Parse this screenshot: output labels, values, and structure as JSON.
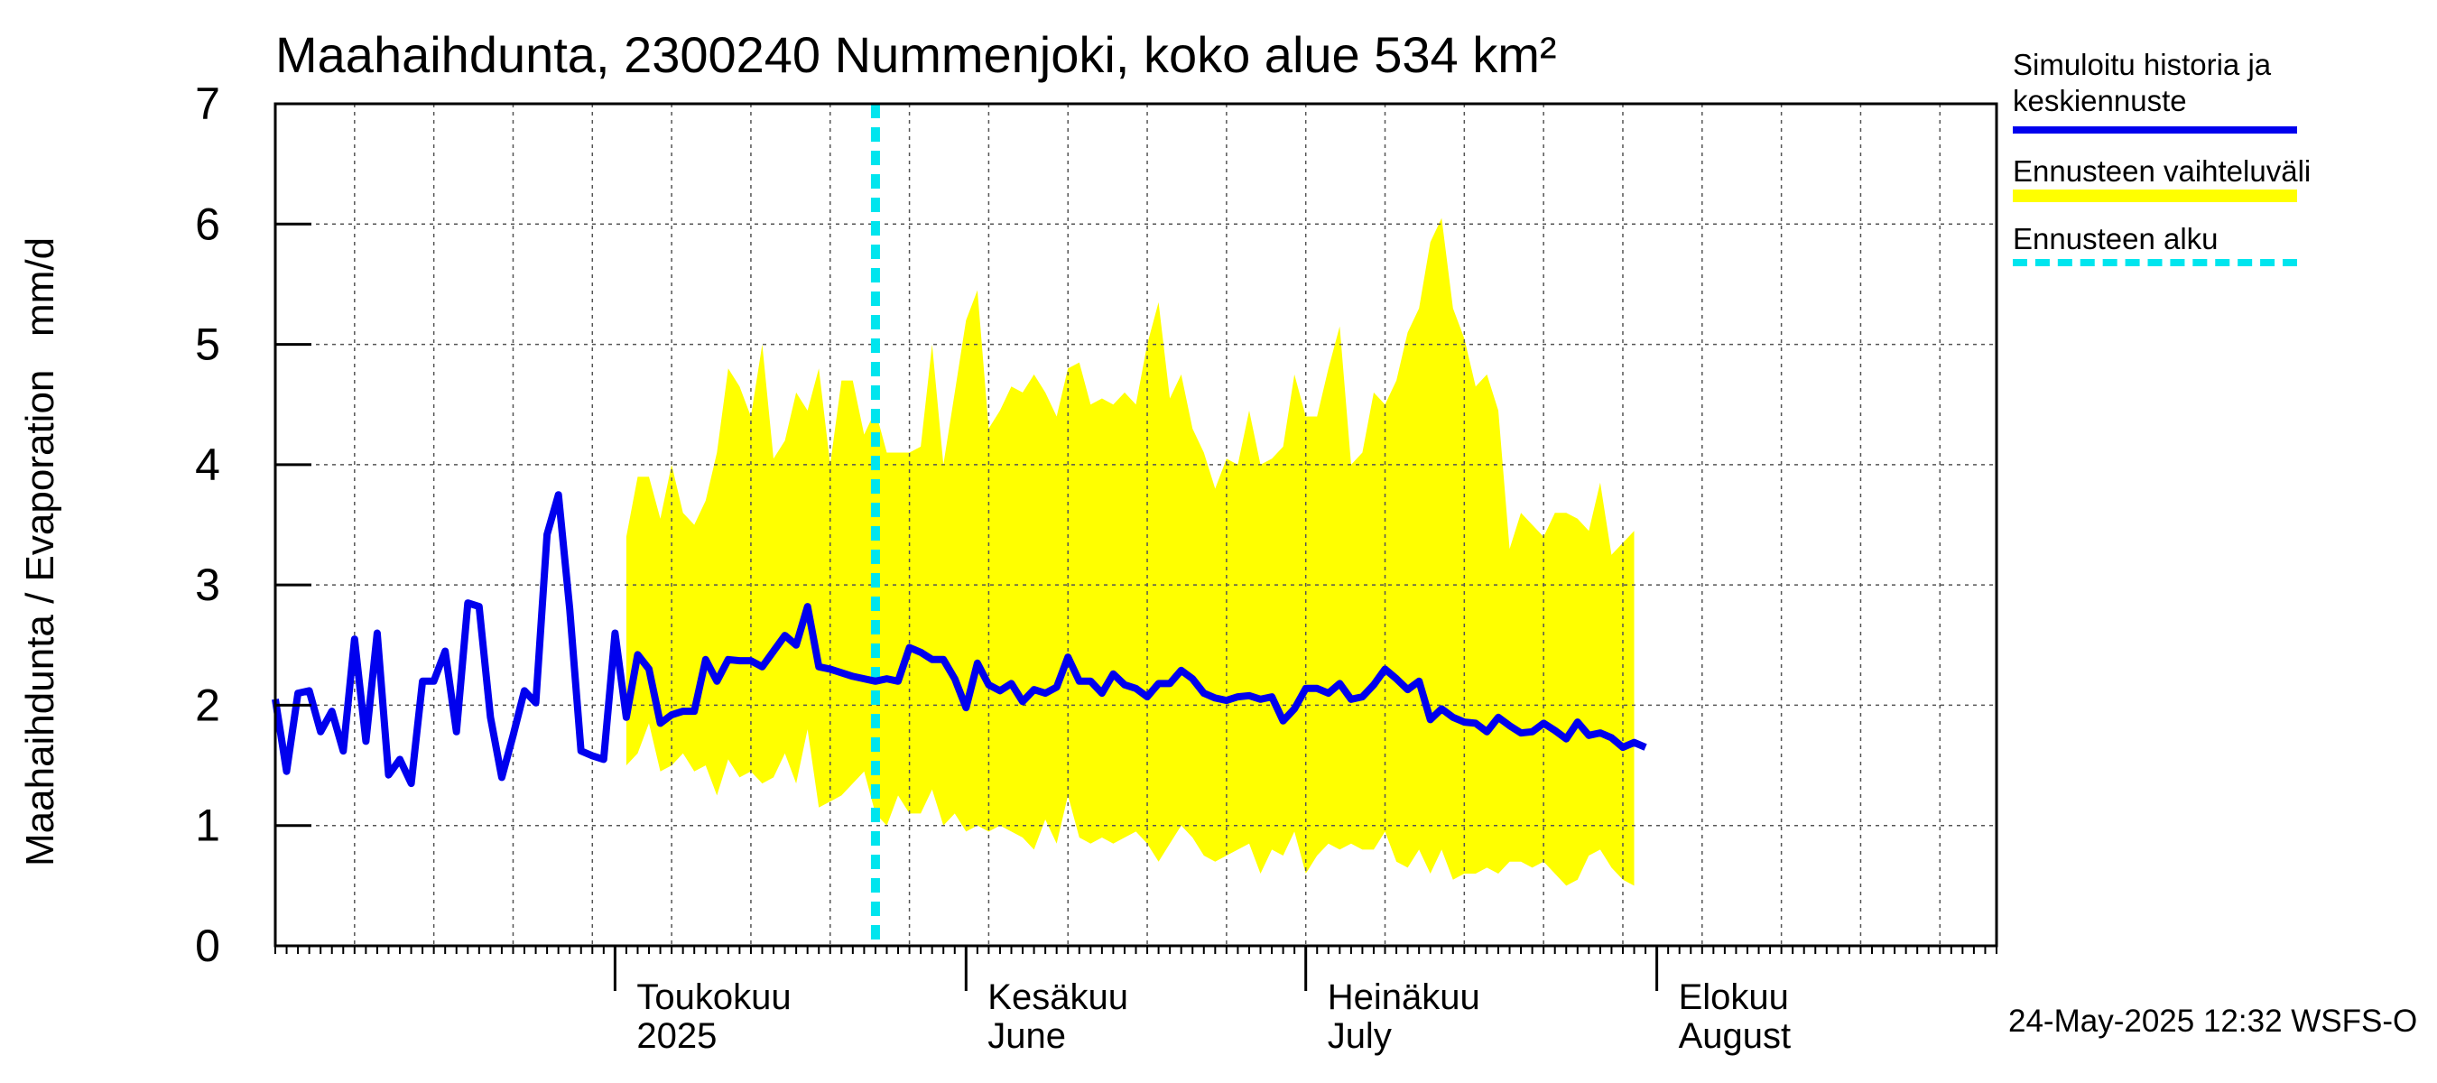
{
  "title": "Maahaihdunta, 2300240 Nummenjoki, koko alue 534 km²",
  "ylabel": "Maahaihdunta / Evaporation   mm/d",
  "timestamp": "24-May-2025 12:32 WSFS-O",
  "legend": {
    "history": "Simuloitu historia ja keskiennuste",
    "range": "Ennusteen vaihteluväli",
    "start": "Ennusteen alku"
  },
  "colors": {
    "history": "#0000ee",
    "range": "#ffff00",
    "start": "#00e5ee",
    "grid": "#555555"
  },
  "chart_data": {
    "type": "line",
    "ylim": [
      0,
      7
    ],
    "yticks": [
      0,
      1,
      2,
      3,
      4,
      5,
      6,
      7
    ],
    "x_start": "2025-04-01",
    "x_end": "2025-08-31",
    "forecast_start": "2025-05-24",
    "month_labels": [
      {
        "date": "2025-05-01",
        "fi": "Toukokuu",
        "en": "2025"
      },
      {
        "date": "2025-06-01",
        "fi": "Kesäkuu",
        "en": "June"
      },
      {
        "date": "2025-07-01",
        "fi": "Heinäkuu",
        "en": "July"
      },
      {
        "date": "2025-08-01",
        "fi": "Elokuu",
        "en": "August"
      }
    ],
    "series": [
      {
        "name": "Simuloitu historia ja keskiennuste",
        "points": [
          [
            "2025-04-01",
            2.05
          ],
          [
            "2025-04-02",
            1.45
          ],
          [
            "2025-04-03",
            2.1
          ],
          [
            "2025-04-04",
            2.12
          ],
          [
            "2025-04-05",
            1.78
          ],
          [
            "2025-04-06",
            1.95
          ],
          [
            "2025-04-07",
            1.62
          ],
          [
            "2025-04-08",
            2.55
          ],
          [
            "2025-04-09",
            1.7
          ],
          [
            "2025-04-10",
            2.6
          ],
          [
            "2025-04-11",
            1.42
          ],
          [
            "2025-04-12",
            1.55
          ],
          [
            "2025-04-13",
            1.35
          ],
          [
            "2025-04-14",
            2.2
          ],
          [
            "2025-04-15",
            2.2
          ],
          [
            "2025-04-16",
            2.45
          ],
          [
            "2025-04-17",
            1.78
          ],
          [
            "2025-04-18",
            2.85
          ],
          [
            "2025-04-19",
            2.82
          ],
          [
            "2025-04-20",
            1.9
          ],
          [
            "2025-04-21",
            1.4
          ],
          [
            "2025-04-22",
            1.75
          ],
          [
            "2025-04-23",
            2.12
          ],
          [
            "2025-04-24",
            2.02
          ],
          [
            "2025-04-25",
            3.42
          ],
          [
            "2025-04-26",
            3.75
          ],
          [
            "2025-04-27",
            2.8
          ],
          [
            "2025-04-28",
            1.62
          ],
          [
            "2025-04-29",
            1.58
          ],
          [
            "2025-04-30",
            1.55
          ],
          [
            "2025-05-01",
            2.6
          ],
          [
            "2025-05-02",
            1.9
          ],
          [
            "2025-05-03",
            2.42
          ],
          [
            "2025-05-04",
            2.3
          ],
          [
            "2025-05-05",
            1.85
          ],
          [
            "2025-05-06",
            1.92
          ],
          [
            "2025-05-07",
            1.95
          ],
          [
            "2025-05-08",
            1.95
          ],
          [
            "2025-05-09",
            2.38
          ],
          [
            "2025-05-10",
            2.2
          ],
          [
            "2025-05-11",
            2.38
          ],
          [
            "2025-05-12",
            2.37
          ],
          [
            "2025-05-13",
            2.37
          ],
          [
            "2025-05-14",
            2.32
          ],
          [
            "2025-05-15",
            2.45
          ],
          [
            "2025-05-16",
            2.58
          ],
          [
            "2025-05-17",
            2.5
          ],
          [
            "2025-05-18",
            2.82
          ],
          [
            "2025-05-19",
            2.32
          ],
          [
            "2025-05-20",
            2.3
          ],
          [
            "2025-05-21",
            2.27
          ],
          [
            "2025-05-22",
            2.24
          ],
          [
            "2025-05-23",
            2.22
          ],
          [
            "2025-05-24",
            2.2
          ],
          [
            "2025-05-25",
            2.22
          ],
          [
            "2025-05-26",
            2.2
          ],
          [
            "2025-05-27",
            2.48
          ],
          [
            "2025-05-28",
            2.44
          ],
          [
            "2025-05-29",
            2.38
          ],
          [
            "2025-05-30",
            2.38
          ],
          [
            "2025-05-31",
            2.22
          ],
          [
            "2025-06-01",
            1.98
          ],
          [
            "2025-06-02",
            2.35
          ],
          [
            "2025-06-03",
            2.17
          ],
          [
            "2025-06-04",
            2.12
          ],
          [
            "2025-06-05",
            2.18
          ],
          [
            "2025-06-06",
            2.03
          ],
          [
            "2025-06-07",
            2.13
          ],
          [
            "2025-06-08",
            2.1
          ],
          [
            "2025-06-09",
            2.15
          ],
          [
            "2025-06-10",
            2.4
          ],
          [
            "2025-06-11",
            2.2
          ],
          [
            "2025-06-12",
            2.2
          ],
          [
            "2025-06-13",
            2.1
          ],
          [
            "2025-06-14",
            2.26
          ],
          [
            "2025-06-15",
            2.17
          ],
          [
            "2025-06-16",
            2.14
          ],
          [
            "2025-06-17",
            2.07
          ],
          [
            "2025-06-18",
            2.18
          ],
          [
            "2025-06-19",
            2.18
          ],
          [
            "2025-06-20",
            2.29
          ],
          [
            "2025-06-21",
            2.22
          ],
          [
            "2025-06-22",
            2.1
          ],
          [
            "2025-06-23",
            2.06
          ],
          [
            "2025-06-24",
            2.04
          ],
          [
            "2025-06-25",
            2.07
          ],
          [
            "2025-06-26",
            2.08
          ],
          [
            "2025-06-27",
            2.05
          ],
          [
            "2025-06-28",
            2.07
          ],
          [
            "2025-06-29",
            1.87
          ],
          [
            "2025-06-30",
            1.97
          ],
          [
            "2025-07-01",
            2.14
          ],
          [
            "2025-07-02",
            2.14
          ],
          [
            "2025-07-03",
            2.1
          ],
          [
            "2025-07-04",
            2.18
          ],
          [
            "2025-07-05",
            2.05
          ],
          [
            "2025-07-06",
            2.07
          ],
          [
            "2025-07-07",
            2.17
          ],
          [
            "2025-07-08",
            2.3
          ],
          [
            "2025-07-09",
            2.22
          ],
          [
            "2025-07-10",
            2.13
          ],
          [
            "2025-07-11",
            2.2
          ],
          [
            "2025-07-12",
            1.88
          ],
          [
            "2025-07-13",
            1.97
          ],
          [
            "2025-07-14",
            1.9
          ],
          [
            "2025-07-15",
            1.86
          ],
          [
            "2025-07-16",
            1.85
          ],
          [
            "2025-07-17",
            1.78
          ],
          [
            "2025-07-18",
            1.9
          ],
          [
            "2025-07-19",
            1.83
          ],
          [
            "2025-07-20",
            1.77
          ],
          [
            "2025-07-21",
            1.78
          ],
          [
            "2025-07-22",
            1.85
          ],
          [
            "2025-07-23",
            1.79
          ],
          [
            "2025-07-24",
            1.72
          ],
          [
            "2025-07-25",
            1.86
          ],
          [
            "2025-07-26",
            1.75
          ],
          [
            "2025-07-27",
            1.77
          ],
          [
            "2025-07-28",
            1.73
          ],
          [
            "2025-07-29",
            1.65
          ],
          [
            "2025-07-30",
            1.69
          ],
          [
            "2025-07-31",
            1.65
          ]
        ]
      },
      {
        "name": "Ennusteen vaihteluväli",
        "points": [
          [
            "2025-05-02",
            1.5,
            3.4
          ],
          [
            "2025-05-03",
            1.6,
            3.9
          ],
          [
            "2025-05-04",
            1.85,
            3.9
          ],
          [
            "2025-05-05",
            1.45,
            3.55
          ],
          [
            "2025-05-06",
            1.5,
            4.0
          ],
          [
            "2025-05-07",
            1.6,
            3.6
          ],
          [
            "2025-05-08",
            1.45,
            3.5
          ],
          [
            "2025-05-09",
            1.5,
            3.7
          ],
          [
            "2025-05-10",
            1.25,
            4.1
          ],
          [
            "2025-05-11",
            1.55,
            4.8
          ],
          [
            "2025-05-12",
            1.4,
            4.65
          ],
          [
            "2025-05-13",
            1.45,
            4.4
          ],
          [
            "2025-05-14",
            1.35,
            5.0
          ],
          [
            "2025-05-15",
            1.4,
            4.05
          ],
          [
            "2025-05-16",
            1.6,
            4.2
          ],
          [
            "2025-05-17",
            1.35,
            4.6
          ],
          [
            "2025-05-18",
            1.8,
            4.45
          ],
          [
            "2025-05-19",
            1.15,
            4.8
          ],
          [
            "2025-05-20",
            1.2,
            4.0
          ],
          [
            "2025-05-21",
            1.25,
            4.7
          ],
          [
            "2025-05-22",
            1.35,
            4.7
          ],
          [
            "2025-05-23",
            1.45,
            4.25
          ],
          [
            "2025-05-24",
            1.1,
            4.45
          ],
          [
            "2025-05-25",
            1.0,
            4.1
          ],
          [
            "2025-05-26",
            1.25,
            4.1
          ],
          [
            "2025-05-27",
            1.1,
            4.1
          ],
          [
            "2025-05-28",
            1.1,
            4.15
          ],
          [
            "2025-05-29",
            1.3,
            5.0
          ],
          [
            "2025-05-30",
            1.0,
            4.0
          ],
          [
            "2025-05-31",
            1.1,
            4.6
          ],
          [
            "2025-06-01",
            0.95,
            5.2
          ],
          [
            "2025-06-02",
            1.0,
            5.45
          ],
          [
            "2025-06-03",
            0.95,
            4.3
          ],
          [
            "2025-06-04",
            1.0,
            4.45
          ],
          [
            "2025-06-05",
            0.95,
            4.65
          ],
          [
            "2025-06-06",
            0.9,
            4.6
          ],
          [
            "2025-06-07",
            0.8,
            4.75
          ],
          [
            "2025-06-08",
            1.05,
            4.6
          ],
          [
            "2025-06-09",
            0.85,
            4.4
          ],
          [
            "2025-06-10",
            1.25,
            4.8
          ],
          [
            "2025-06-11",
            0.9,
            4.85
          ],
          [
            "2025-06-12",
            0.85,
            4.5
          ],
          [
            "2025-06-13",
            0.9,
            4.55
          ],
          [
            "2025-06-14",
            0.85,
            4.5
          ],
          [
            "2025-06-15",
            0.9,
            4.6
          ],
          [
            "2025-06-16",
            0.95,
            4.5
          ],
          [
            "2025-06-17",
            0.85,
            5.0
          ],
          [
            "2025-06-18",
            0.7,
            5.35
          ],
          [
            "2025-06-19",
            0.85,
            4.55
          ],
          [
            "2025-06-20",
            1.0,
            4.75
          ],
          [
            "2025-06-21",
            0.9,
            4.3
          ],
          [
            "2025-06-22",
            0.75,
            4.1
          ],
          [
            "2025-06-23",
            0.7,
            3.8
          ],
          [
            "2025-06-24",
            0.75,
            4.05
          ],
          [
            "2025-06-25",
            0.8,
            4.0
          ],
          [
            "2025-06-26",
            0.85,
            4.45
          ],
          [
            "2025-06-27",
            0.6,
            4.0
          ],
          [
            "2025-06-28",
            0.8,
            4.05
          ],
          [
            "2025-06-29",
            0.75,
            4.15
          ],
          [
            "2025-06-30",
            0.95,
            4.75
          ],
          [
            "2025-07-01",
            0.6,
            4.4
          ],
          [
            "2025-07-02",
            0.75,
            4.4
          ],
          [
            "2025-07-03",
            0.85,
            4.8
          ],
          [
            "2025-07-04",
            0.8,
            5.15
          ],
          [
            "2025-07-05",
            0.85,
            4.0
          ],
          [
            "2025-07-06",
            0.8,
            4.1
          ],
          [
            "2025-07-07",
            0.8,
            4.6
          ],
          [
            "2025-07-08",
            0.95,
            4.5
          ],
          [
            "2025-07-09",
            0.7,
            4.7
          ],
          [
            "2025-07-10",
            0.65,
            5.1
          ],
          [
            "2025-07-11",
            0.8,
            5.3
          ],
          [
            "2025-07-12",
            0.6,
            5.85
          ],
          [
            "2025-07-13",
            0.8,
            6.05
          ],
          [
            "2025-07-14",
            0.55,
            5.3
          ],
          [
            "2025-07-15",
            0.6,
            5.05
          ],
          [
            "2025-07-16",
            0.6,
            4.65
          ],
          [
            "2025-07-17",
            0.65,
            4.75
          ],
          [
            "2025-07-18",
            0.6,
            4.45
          ],
          [
            "2025-07-19",
            0.7,
            3.3
          ],
          [
            "2025-07-20",
            0.7,
            3.6
          ],
          [
            "2025-07-21",
            0.65,
            3.5
          ],
          [
            "2025-07-22",
            0.7,
            3.4
          ],
          [
            "2025-07-23",
            0.6,
            3.6
          ],
          [
            "2025-07-24",
            0.5,
            3.6
          ],
          [
            "2025-07-25",
            0.55,
            3.55
          ],
          [
            "2025-07-26",
            0.75,
            3.45
          ],
          [
            "2025-07-27",
            0.8,
            3.85
          ],
          [
            "2025-07-28",
            0.65,
            3.25
          ],
          [
            "2025-07-29",
            0.55,
            3.35
          ],
          [
            "2025-07-30",
            0.5,
            3.45
          ]
        ]
      }
    ]
  }
}
